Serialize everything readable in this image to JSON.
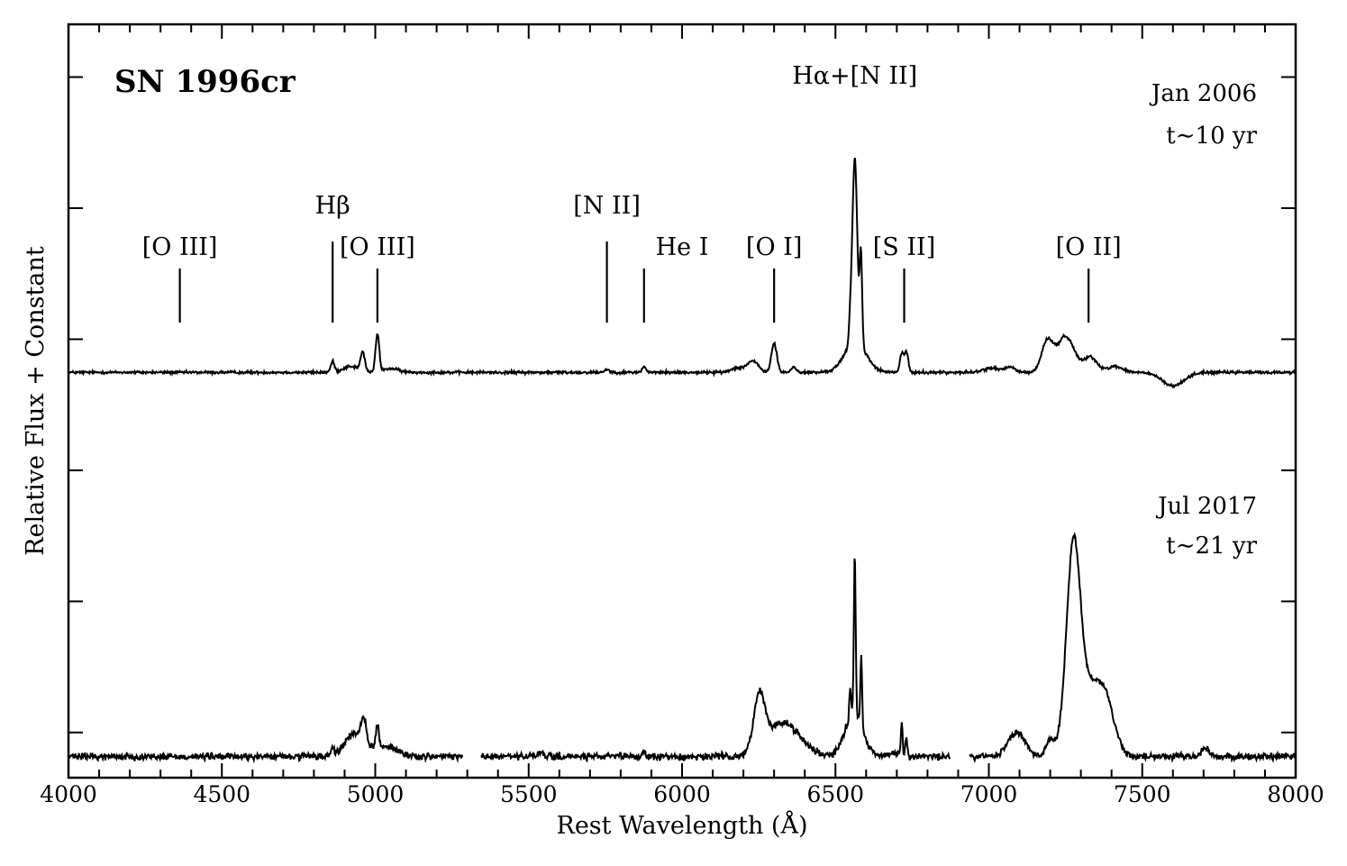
{
  "chart_data": {
    "type": "line",
    "title": "SN 1996cr",
    "xlabel": "Rest Wavelength (Å)",
    "ylabel": "Relative Flux + Constant",
    "xlim": [
      4000,
      8000
    ],
    "x_ticks": [
      4000,
      4500,
      5000,
      5500,
      6000,
      6500,
      7000,
      7500,
      8000
    ],
    "x_tick_labels": [
      "4000",
      "4500",
      "5000",
      "5500",
      "6000",
      "6500",
      "7000",
      "7500",
      "8000"
    ],
    "ylim": [
      0,
      10
    ],
    "grid": false,
    "legend": "none",
    "series": [
      {
        "epoch": "Jan 2006",
        "age": "t∼10 yr",
        "baseline": 5.38,
        "noise": 0.018,
        "gaps": [],
        "continuum": [
          {
            "x": 7600,
            "sigma": 35,
            "amp": -0.18
          }
        ],
        "features": [
          {
            "x": 4861,
            "amp": 0.14,
            "sigma": 6
          },
          {
            "x": 4920,
            "amp": 0.08,
            "sigma": 25
          },
          {
            "x": 4959,
            "amp": 0.25,
            "sigma": 7
          },
          {
            "x": 5007,
            "amp": 0.5,
            "sigma": 6
          },
          {
            "x": 5050,
            "amp": 0.05,
            "sigma": 25
          },
          {
            "x": 5755,
            "amp": 0.04,
            "sigma": 8
          },
          {
            "x": 5876,
            "amp": 0.08,
            "sigma": 6
          },
          {
            "x": 6180,
            "amp": 0.06,
            "sigma": 20
          },
          {
            "x": 6230,
            "amp": 0.15,
            "sigma": 18
          },
          {
            "x": 6300,
            "amp": 0.38,
            "sigma": 9
          },
          {
            "x": 6364,
            "amp": 0.07,
            "sigma": 8
          },
          {
            "x": 6563,
            "amp": 2.45,
            "sigma": 8
          },
          {
            "x": 6565,
            "amp": 0.4,
            "sigma": 35
          },
          {
            "x": 6583,
            "amp": 1.2,
            "sigma": 4
          },
          {
            "x": 6548,
            "amp": 0.22,
            "sigma": 4
          },
          {
            "x": 6716,
            "amp": 0.25,
            "sigma": 6
          },
          {
            "x": 6731,
            "amp": 0.27,
            "sigma": 6
          },
          {
            "x": 7010,
            "amp": 0.06,
            "sigma": 25
          },
          {
            "x": 7070,
            "amp": 0.07,
            "sigma": 15
          },
          {
            "x": 7190,
            "amp": 0.4,
            "sigma": 18
          },
          {
            "x": 7250,
            "amp": 0.48,
            "sigma": 28
          },
          {
            "x": 7330,
            "amp": 0.2,
            "sigma": 22
          },
          {
            "x": 7410,
            "amp": 0.08,
            "sigma": 25
          }
        ]
      },
      {
        "epoch": "Jul 2017",
        "age": "t∼21 yr",
        "baseline": 0.28,
        "noise": 0.045,
        "gaps": [
          [
            5285,
            5345
          ],
          [
            6875,
            6935
          ]
        ],
        "continuum": [
          {
            "x": 4300,
            "sigma": 60,
            "amp": 0.0
          }
        ],
        "features": [
          {
            "x": 4861,
            "amp": 0.1,
            "sigma": 4
          },
          {
            "x": 4930,
            "amp": 0.3,
            "sigma": 30
          },
          {
            "x": 4962,
            "amp": 0.3,
            "sigma": 9
          },
          {
            "x": 5007,
            "amp": 0.3,
            "sigma": 5
          },
          {
            "x": 5030,
            "amp": 0.14,
            "sigma": 40
          },
          {
            "x": 5540,
            "amp": 0.05,
            "sigma": 10
          },
          {
            "x": 5877,
            "amp": 0.06,
            "sigma": 5
          },
          {
            "x": 6252,
            "amp": 0.7,
            "sigma": 18
          },
          {
            "x": 6330,
            "amp": 0.45,
            "sigma": 55
          },
          {
            "x": 6560,
            "amp": 0.55,
            "sigma": 30
          },
          {
            "x": 6548,
            "amp": 0.4,
            "sigma": 3
          },
          {
            "x": 6563,
            "amp": 2.15,
            "sigma": 3
          },
          {
            "x": 6584,
            "amp": 0.95,
            "sigma": 3
          },
          {
            "x": 6716,
            "amp": 0.4,
            "sigma": 3
          },
          {
            "x": 6731,
            "amp": 0.28,
            "sigma": 3
          },
          {
            "x": 6690,
            "amp": 0.04,
            "sigma": 20
          },
          {
            "x": 7090,
            "amp": 0.32,
            "sigma": 28
          },
          {
            "x": 7200,
            "amp": 0.2,
            "sigma": 14
          },
          {
            "x": 7275,
            "amp": 2.4,
            "sigma": 22
          },
          {
            "x": 7320,
            "amp": 0.85,
            "sigma": 45
          },
          {
            "x": 7380,
            "amp": 0.55,
            "sigma": 30
          },
          {
            "x": 7705,
            "amp": 0.12,
            "sigma": 12
          }
        ]
      }
    ],
    "line_ids": [
      {
        "label": "[O III]",
        "x": 4363,
        "label_x": 4363,
        "label_level": 1
      },
      {
        "label": "Hβ",
        "x": 4861,
        "label_x": 4861,
        "label_level": 2
      },
      {
        "label": "[O III]",
        "x": 5007,
        "label_x": 5007,
        "label_level": 1
      },
      {
        "label": "[N II]",
        "x": 5755,
        "label_x": 5755,
        "label_level": 2
      },
      {
        "label": "He I",
        "x": 5876,
        "label_x": 6000,
        "label_level": 1
      },
      {
        "label": "[O I]",
        "x": 6300,
        "label_x": 6300,
        "label_level": 1
      },
      {
        "label": "Hα+[N II]",
        "x": 6563,
        "label_x": 6563,
        "label_level": 3,
        "tick": false
      },
      {
        "label": "[S II]",
        "x": 6724,
        "label_x": 6724,
        "label_level": 1
      },
      {
        "label": "[O II]",
        "x": 7325,
        "label_x": 7325,
        "label_level": 1
      }
    ]
  }
}
